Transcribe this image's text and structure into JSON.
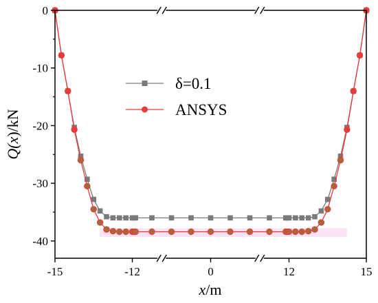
{
  "chart_data": {
    "type": "line",
    "title": "",
    "xlabel": {
      "italic": "x",
      "rest": "/m"
    },
    "ylabel": {
      "italic": "x",
      "pre": "Q(",
      "post": ")/kN"
    },
    "xlim": [
      -15,
      15
    ],
    "ylim": [
      -43,
      0
    ],
    "x_ticks": [
      -15,
      -12,
      0,
      12,
      15
    ],
    "y_ticks": [
      0,
      -10,
      -20,
      -30,
      -40
    ],
    "x_tick_labels": [
      "-15",
      "-12",
      "0",
      "12",
      "15"
    ],
    "y_tick_labels": [
      "0",
      "-10",
      "-20",
      "-30",
      "-40"
    ],
    "axis_breaks_x": [
      -7.5,
      7.5
    ],
    "grid": false,
    "legend_position": "center-left",
    "series": [
      {
        "name": "δ=0.1",
        "color": "#7a7a7a",
        "marker": "square",
        "x": [
          -15,
          -14.75,
          -14.5,
          -14.25,
          -14.0,
          -13.75,
          -13.5,
          -13.25,
          -13.0,
          -12.75,
          -12.5,
          -12.25,
          -12.0,
          -11.75,
          -11.5,
          -9.0,
          -6.0,
          -3.0,
          0,
          3.0,
          6.0,
          9.0,
          11.5,
          11.75,
          12.0,
          12.25,
          12.5,
          12.75,
          13.0,
          13.25,
          13.5,
          13.75,
          14.0,
          14.25,
          14.5,
          14.75,
          15
        ],
        "y": [
          0,
          -7.8,
          -14.0,
          -20.3,
          -25.3,
          -29.3,
          -32.8,
          -34.8,
          -35.8,
          -36.0,
          -36.0,
          -36.0,
          -36.0,
          -36.0,
          -36.0,
          -36.0,
          -36.0,
          -36.0,
          -36.0,
          -36.0,
          -36.0,
          -36.0,
          -36.0,
          -36.0,
          -36.0,
          -36.0,
          -36.0,
          -36.0,
          -35.8,
          -34.8,
          -32.8,
          -29.3,
          -25.3,
          -20.3,
          -14.0,
          -7.8,
          0
        ]
      },
      {
        "name": "ANSYS",
        "color": "#e83a3a",
        "marker": "circle",
        "x": [
          -15,
          -14.75,
          -14.5,
          -14.25,
          -14.0,
          -13.75,
          -13.5,
          -13.25,
          -13.0,
          -12.75,
          -12.5,
          -12.25,
          -12.0,
          -11.75,
          -11.5,
          -9.0,
          -6.0,
          -3.0,
          0,
          3.0,
          6.0,
          9.0,
          11.5,
          11.75,
          12.0,
          12.25,
          12.5,
          12.75,
          13.0,
          13.25,
          13.5,
          13.75,
          14.0,
          14.25,
          14.5,
          14.75,
          15
        ],
        "y": [
          0,
          -7.8,
          -14.0,
          -20.7,
          -26.0,
          -30.5,
          -34.5,
          -36.8,
          -38.0,
          -38.3,
          -38.4,
          -38.4,
          -38.4,
          -38.4,
          -38.4,
          -38.4,
          -38.4,
          -38.4,
          -38.4,
          -38.4,
          -38.4,
          -38.4,
          -38.4,
          -38.4,
          -38.4,
          -38.4,
          -38.4,
          -38.3,
          -38.0,
          -36.8,
          -34.5,
          -30.5,
          -26.0,
          -20.7,
          -14.0,
          -7.8,
          0
        ]
      }
    ]
  }
}
